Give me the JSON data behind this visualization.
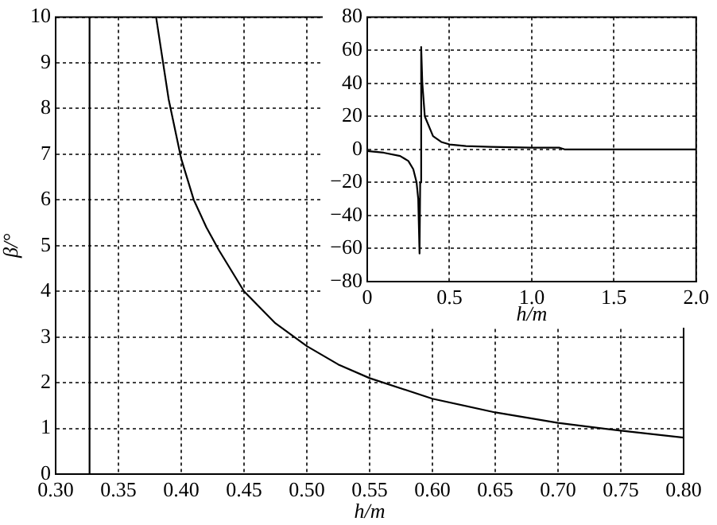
{
  "chart_data": [
    {
      "type": "line",
      "xlabel": "h/m",
      "ylabel": "β/°",
      "xlim": [
        0.3,
        0.8
      ],
      "ylim": [
        0,
        10
      ],
      "xticks": [
        {
          "value": 0.3,
          "label": "0.30"
        },
        {
          "value": 0.35,
          "label": "0.35"
        },
        {
          "value": 0.4,
          "label": "0.40"
        },
        {
          "value": 0.45,
          "label": "0.45"
        },
        {
          "value": 0.5,
          "label": "0.50"
        },
        {
          "value": 0.55,
          "label": "0.55"
        },
        {
          "value": 0.6,
          "label": "0.60"
        },
        {
          "value": 0.65,
          "label": "0.65"
        },
        {
          "value": 0.7,
          "label": "0.70"
        },
        {
          "value": 0.75,
          "label": "0.75"
        },
        {
          "value": 0.8,
          "label": "0.80"
        }
      ],
      "yticks": [
        0,
        1,
        2,
        3,
        4,
        5,
        6,
        7,
        8,
        9,
        10
      ],
      "grid": true,
      "marker": "none",
      "line_style": "solid",
      "series": [
        {
          "color": "#000000",
          "x": [
            0.327,
            0.327,
            0.35,
            0.38,
            0.39,
            0.4,
            0.41,
            0.42,
            0.43,
            0.45,
            0.475,
            0.5,
            0.525,
            0.55,
            0.6,
            0.65,
            0.7,
            0.75,
            0.8
          ],
          "values": [
            0,
            10,
            null,
            10,
            8.2,
            6.9,
            6.0,
            5.4,
            4.9,
            4.0,
            3.3,
            2.8,
            2.4,
            2.1,
            1.65,
            1.35,
            1.12,
            0.95,
            0.8
          ]
        }
      ]
    },
    {
      "type": "line",
      "xlabel": "h/m",
      "xlim": [
        0,
        2
      ],
      "ylim": [
        -80,
        80
      ],
      "xticks": [
        0,
        {
          "value": 0.5,
          "label": "0.5"
        },
        {
          "value": 1,
          "label": "1.0"
        },
        {
          "value": 1.5,
          "label": "1.5"
        },
        {
          "value": 2,
          "label": "2.0"
        }
      ],
      "yticks": [
        {
          "value": -80,
          "label": "−80"
        },
        {
          "value": -60,
          "label": "−60"
        },
        {
          "value": -40,
          "label": "−40"
        },
        {
          "value": -20,
          "label": "−20"
        },
        0,
        20,
        40,
        60,
        80
      ],
      "grid": true,
      "marker": "none",
      "line_style": "solid",
      "series": [
        {
          "color": "#000000",
          "x": [
            0,
            0.1,
            0.2,
            0.25,
            0.28,
            0.3,
            0.31,
            0.318,
            0.322,
            0.328,
            0.335,
            0.35,
            0.4,
            0.45,
            0.5,
            0.6,
            0.75,
            1.0,
            1.17,
            1.2,
            2.0
          ],
          "values": [
            -1,
            -2,
            -4,
            -7,
            -12,
            -20,
            -30,
            -63,
            -20,
            62,
            40,
            20,
            8,
            4.5,
            3,
            2,
            1.5,
            1,
            1,
            0,
            0
          ]
        }
      ]
    }
  ]
}
